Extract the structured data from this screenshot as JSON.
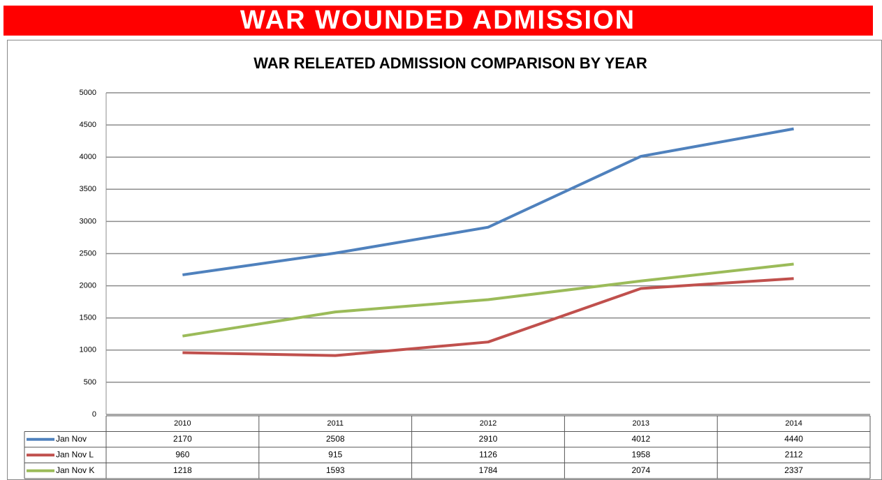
{
  "header": {
    "title": "WAR WOUNDED ADMISSION"
  },
  "chart_data": {
    "type": "line",
    "title": "WAR RELEATED ADMISSION COMPARISON BY YEAR",
    "categories": [
      "2010",
      "2011",
      "2012",
      "2013",
      "2014"
    ],
    "series": [
      {
        "name": "Jan Nov",
        "color": "#4f81bd",
        "values": [
          2170,
          2508,
          2910,
          4012,
          4440
        ]
      },
      {
        "name": "Jan Nov L",
        "color": "#c0504d",
        "values": [
          960,
          915,
          1126,
          1958,
          2112
        ]
      },
      {
        "name": "Jan Nov K",
        "color": "#9bbb59",
        "values": [
          1218,
          1593,
          1784,
          2074,
          2337
        ]
      }
    ],
    "ylim": [
      0,
      5000
    ],
    "yticks": [
      0,
      500,
      1000,
      1500,
      2000,
      2500,
      3000,
      3500,
      4000,
      4500,
      5000
    ],
    "grid": true
  }
}
